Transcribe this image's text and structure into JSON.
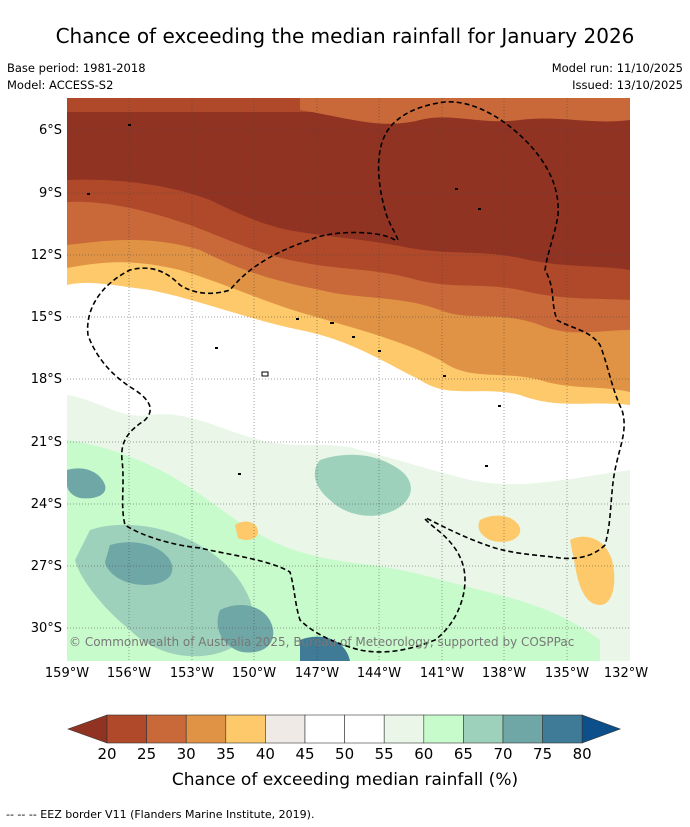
{
  "title": "Chance of exceeding the median rainfall for January 2026",
  "meta": {
    "base_period": "Base period: 1981-2018",
    "model": "Model: ACCESS-S2",
    "model_run": "Model run: 11/10/2025",
    "issued": "Issued: 13/10/2025"
  },
  "copyright": "© Commonwealth of Australia 2025, Bureau of Meteorology, supported by COSPPac",
  "lat_labels": [
    "6°S",
    "9°S",
    "12°S",
    "15°S",
    "18°S",
    "21°S",
    "24°S",
    "27°S",
    "30°S"
  ],
  "lon_labels": [
    "159°W",
    "156°W",
    "153°W",
    "150°W",
    "147°W",
    "144°W",
    "141°W",
    "138°W",
    "135°W",
    "132°W"
  ],
  "colorbar": {
    "title": "Chance of exceeding median rainfall (%)",
    "ticks": [
      "20",
      "25",
      "30",
      "35",
      "40",
      "45",
      "50",
      "55",
      "60",
      "65",
      "70",
      "75",
      "80"
    ],
    "colors": [
      "#913322",
      "#b0492a",
      "#c9693a",
      "#e09344",
      "#fdc96a",
      "#efeae6",
      "#ffffff",
      "#ffffff",
      "#e9f6e8",
      "#c8fbcb",
      "#9dd1bb",
      "#6fa7a6",
      "#3f7a96",
      "#0d4f8a"
    ]
  },
  "footer": "--  --  -- EEZ border V11 (Flanders Marine Institute, 2019).",
  "icons": [
    "dashed-eez-line"
  ]
}
